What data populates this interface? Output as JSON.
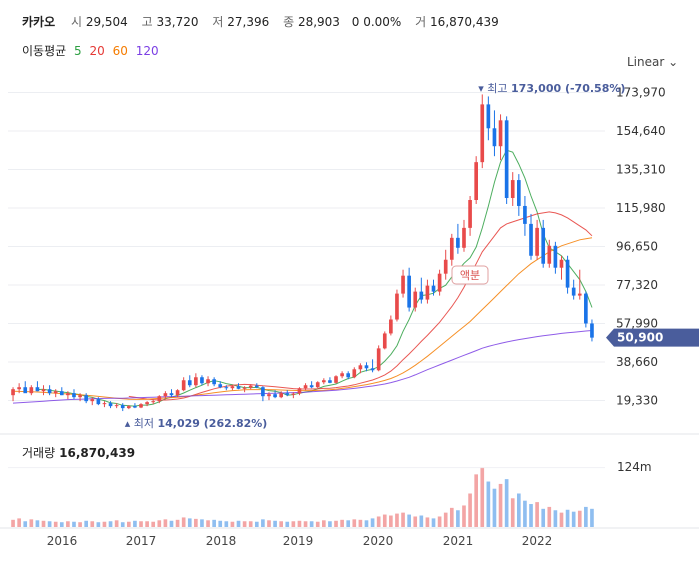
{
  "header": {
    "name": "카카오",
    "open_label": "시",
    "open": "29,504",
    "high_label": "고",
    "high": "33,720",
    "low_label": "저",
    "low": "27,396",
    "close_label": "종",
    "close": "28,903",
    "change": "0 0.00%",
    "volume_label": "거",
    "volume": "16,870,439"
  },
  "ma_legend": {
    "title": "이동평균",
    "items": [
      {
        "label": "5",
        "color": "#2ea043"
      },
      {
        "label": "20",
        "color": "#e53935"
      },
      {
        "label": "60",
        "color": "#f57c00"
      },
      {
        "label": "120",
        "color": "#7b3fe4"
      }
    ]
  },
  "scale_button": "Linear",
  "colors": {
    "up": "#e84a4a",
    "down": "#1a73e8",
    "up_vol": "#f3a5a5",
    "down_vol": "#8fbef0",
    "current": "#4a5d9c"
  },
  "chart_data": {
    "type": "candlestick",
    "x_axis_labels": [
      "2016",
      "2017",
      "2018",
      "2019",
      "2020",
      "2021",
      "2022"
    ],
    "y_axis_labels": [
      "173,970",
      "154,640",
      "135,310",
      "115,980",
      "96,650",
      "77,320",
      "57,990",
      "38,660",
      "19,330"
    ],
    "ylim": [
      10000,
      180000
    ],
    "current_price": "50,900",
    "current_value": 50900,
    "max_annotation": {
      "label": "최고",
      "value": "173,000 (-70.58%)",
      "price": 173000
    },
    "min_annotation": {
      "label": "최저",
      "value": "14,029 (262.82%)",
      "price": 14029
    },
    "event_label": "액분",
    "volume_label": "거래량",
    "volume_value": "16,870,439",
    "volume_tick": "124m",
    "candles": [
      [
        22000,
        26000,
        19000,
        25000
      ],
      [
        25000,
        28000,
        23000,
        26000
      ],
      [
        26000,
        29000,
        24000,
        23000
      ],
      [
        23000,
        27000,
        22000,
        26000
      ],
      [
        26000,
        29000,
        24000,
        24000
      ],
      [
        24000,
        27000,
        22000,
        25000
      ],
      [
        25000,
        27000,
        22000,
        23000
      ],
      [
        23000,
        25000,
        21000,
        24000
      ],
      [
        24000,
        26000,
        22000,
        22000
      ],
      [
        22000,
        24000,
        20000,
        23000
      ],
      [
        23000,
        25000,
        20000,
        21000
      ],
      [
        21000,
        23000,
        19000,
        22000
      ],
      [
        22000,
        23000,
        18000,
        19000
      ],
      [
        19000,
        21000,
        17000,
        20000
      ],
      [
        20000,
        21000,
        17000,
        17500
      ],
      [
        17500,
        19000,
        16000,
        18000
      ],
      [
        18000,
        19000,
        15500,
        16500
      ],
      [
        16500,
        18000,
        15500,
        17000
      ],
      [
        17000,
        18000,
        14029,
        15500
      ],
      [
        15500,
        17000,
        15000,
        16500
      ],
      [
        16500,
        18000,
        15500,
        15800
      ],
      [
        15800,
        18000,
        15500,
        17500
      ],
      [
        17500,
        19000,
        16500,
        18500
      ],
      [
        18500,
        20000,
        17500,
        19000
      ],
      [
        19000,
        22000,
        18000,
        21500
      ],
      [
        21500,
        24000,
        20000,
        23000
      ],
      [
        23000,
        25000,
        21000,
        22000
      ],
      [
        22000,
        25000,
        21000,
        24500
      ],
      [
        24500,
        31000,
        24000,
        29500
      ],
      [
        29500,
        32000,
        26000,
        27000
      ],
      [
        27000,
        33000,
        26000,
        31000
      ],
      [
        31000,
        32000,
        27000,
        28000
      ],
      [
        28000,
        31500,
        26500,
        30000
      ],
      [
        30000,
        31000,
        26500,
        27500
      ],
      [
        27500,
        29000,
        25500,
        26000
      ],
      [
        26000,
        27000,
        24500,
        25500
      ],
      [
        25500,
        27000,
        24500,
        26500
      ],
      [
        26500,
        28000,
        25000,
        25200
      ],
      [
        25200,
        26500,
        23500,
        25800
      ],
      [
        25800,
        27500,
        25000,
        26800
      ],
      [
        26800,
        28000,
        25500,
        26000
      ],
      [
        26000,
        26500,
        19000,
        21500
      ],
      [
        21500,
        23500,
        19500,
        22500
      ],
      [
        22500,
        24500,
        20500,
        21000
      ],
      [
        21000,
        24000,
        20500,
        23000
      ],
      [
        23000,
        24500,
        21500,
        22200
      ],
      [
        22200,
        23500,
        20500,
        22800
      ],
      [
        22800,
        26000,
        22000,
        25500
      ],
      [
        25500,
        28000,
        24500,
        27000
      ],
      [
        27000,
        29000,
        25500,
        26000
      ],
      [
        26000,
        29000,
        25500,
        28500
      ],
      [
        28500,
        30500,
        27500,
        29500
      ],
      [
        29500,
        31000,
        28000,
        28200
      ],
      [
        28200,
        32000,
        27800,
        31500
      ],
      [
        31500,
        34000,
        30500,
        33000
      ],
      [
        33000,
        34000,
        30000,
        31000
      ],
      [
        31000,
        36000,
        30500,
        35000
      ],
      [
        35000,
        38000,
        33000,
        37000
      ],
      [
        37000,
        38500,
        34000,
        35500
      ],
      [
        35500,
        40000,
        33500,
        34500
      ],
      [
        34500,
        47000,
        34000,
        45500
      ],
      [
        45500,
        54000,
        45000,
        53000
      ],
      [
        53000,
        62000,
        52000,
        60000
      ],
      [
        60000,
        75000,
        59000,
        73000
      ],
      [
        73000,
        85000,
        71000,
        82000
      ],
      [
        82000,
        86000,
        64000,
        66000
      ],
      [
        66000,
        76000,
        64000,
        74000
      ],
      [
        74000,
        81000,
        68000,
        70000
      ],
      [
        70000,
        80000,
        68000,
        77000
      ],
      [
        77000,
        80000,
        72000,
        74000
      ],
      [
        74000,
        85000,
        72000,
        83000
      ],
      [
        83000,
        95000,
        80000,
        90000
      ],
      [
        90000,
        103000,
        87000,
        101000
      ],
      [
        101000,
        108000,
        93000,
        96000
      ],
      [
        96000,
        110000,
        94000,
        106000
      ],
      [
        106000,
        122000,
        102000,
        120000
      ],
      [
        120000,
        142000,
        118000,
        139000
      ],
      [
        139000,
        173000,
        136000,
        168000
      ],
      [
        168000,
        172000,
        150000,
        156000
      ],
      [
        156000,
        165000,
        142000,
        147000
      ],
      [
        147000,
        163000,
        140000,
        160000
      ],
      [
        160000,
        162000,
        118000,
        121000
      ],
      [
        121000,
        134000,
        117000,
        130000
      ],
      [
        130000,
        133000,
        112000,
        117000
      ],
      [
        117000,
        122000,
        102000,
        108000
      ],
      [
        108000,
        113000,
        90000,
        92000
      ],
      [
        92000,
        110000,
        90000,
        106000
      ],
      [
        106000,
        110000,
        86000,
        88000
      ],
      [
        88000,
        100000,
        86000,
        97000
      ],
      [
        97000,
        99000,
        83000,
        86000
      ],
      [
        86000,
        92000,
        80000,
        90000
      ],
      [
        90000,
        92000,
        73000,
        76000
      ],
      [
        76000,
        80000,
        70000,
        72000
      ],
      [
        72000,
        85000,
        70000,
        73000
      ],
      [
        73000,
        74000,
        56000,
        58000
      ],
      [
        58000,
        60000,
        49000,
        50900
      ]
    ],
    "ma_lines": [
      {
        "name": "5",
        "color": "#2ea043",
        "values": [
          null,
          null,
          null,
          null,
          24800,
          25000,
          24400,
          24100,
          23600,
          23300,
          22700,
          22300,
          21400,
          20900,
          20000,
          19300,
          18200,
          17800,
          16900,
          16700,
          16500,
          17000,
          17000,
          17500,
          18700,
          20200,
          21000,
          21900,
          23100,
          24500,
          25800,
          27000,
          28400,
          29300,
          28700,
          27800,
          27200,
          26400,
          25800,
          25800,
          25900,
          25100,
          24300,
          24000,
          23300,
          22000,
          22300,
          23000,
          23600,
          24100,
          25200,
          26400,
          27000,
          27600,
          29000,
          30400,
          31100,
          33500,
          34400,
          35000,
          36300,
          39100,
          42500,
          46900,
          54000,
          60000,
          67000,
          72000,
          72400,
          73200,
          75600,
          77200,
          81400,
          84600,
          88200,
          91000,
          96400,
          106000,
          117000,
          129000,
          139000,
          145000,
          144000,
          138000,
          131000,
          122000,
          114000,
          103000,
          96000,
          94000,
          92000,
          88000,
          84000,
          80000,
          74000,
          66000
        ]
      },
      {
        "name": "20",
        "color": "#e53935",
        "values": [
          null,
          null,
          null,
          null,
          null,
          null,
          null,
          null,
          null,
          null,
          null,
          null,
          null,
          null,
          null,
          null,
          null,
          null,
          null,
          21400,
          21000,
          20500,
          20100,
          19800,
          19600,
          19600,
          19800,
          20100,
          20600,
          21400,
          22400,
          23400,
          24300,
          25200,
          25900,
          26500,
          27000,
          27200,
          27400,
          27300,
          27000,
          26700,
          26500,
          26200,
          25900,
          25600,
          25300,
          25100,
          25100,
          25100,
          25200,
          25400,
          25500,
          25800,
          26200,
          26600,
          27200,
          28000,
          28800,
          29600,
          30800,
          32200,
          34100,
          36700,
          39800,
          42700,
          45800,
          49000,
          52000,
          55300,
          58600,
          62500,
          66500,
          71000,
          76200,
          82000,
          88000,
          94000,
          98000,
          102000,
          106000,
          108000,
          109000,
          110000,
          111000,
          112000,
          113000,
          113500,
          114000,
          113500,
          112500,
          111000,
          109000,
          107000,
          105000,
          102000
        ]
      },
      {
        "name": "60",
        "color": "#f57c00",
        "values": [
          24000,
          23900,
          23800,
          23700,
          23600,
          23400,
          23200,
          23000,
          22800,
          22600,
          22400,
          22200,
          22000,
          21700,
          21400,
          21100,
          20800,
          20500,
          20200,
          20000,
          19900,
          19900,
          20000,
          20200,
          20400,
          20600,
          20800,
          21000,
          21300,
          21600,
          22000,
          22400,
          22800,
          23200,
          23600,
          24000,
          24300,
          24500,
          24700,
          24800,
          24800,
          24800,
          24800,
          24700,
          24600,
          24500,
          24400,
          24300,
          24300,
          24300,
          24400,
          24500,
          24700,
          25000,
          25400,
          25800,
          26300,
          26800,
          27300,
          27900,
          28600,
          29400,
          30400,
          31700,
          33200,
          35000,
          37000,
          39200,
          41500,
          44000,
          46500,
          49000,
          51500,
          54000,
          56500,
          59000,
          62000,
          65000,
          68000,
          71000,
          74000,
          77000,
          80000,
          83000,
          85500,
          88000,
          90000,
          92000,
          94000,
          95500,
          97000,
          98000,
          99000,
          100000,
          100500,
          101000
        ]
      },
      {
        "name": "120",
        "color": "#7b3fe4",
        "values": [
          18000,
          18200,
          18400,
          18600,
          18800,
          19000,
          19200,
          19400,
          19600,
          19800,
          19900,
          20000,
          20100,
          20200,
          20300,
          20400,
          20500,
          20500,
          20500,
          20600,
          20700,
          20800,
          20900,
          21000,
          21100,
          21200,
          21300,
          21400,
          21500,
          21600,
          21700,
          21800,
          21900,
          22000,
          22100,
          22200,
          22300,
          22400,
          22500,
          22600,
          22700,
          22800,
          22900,
          23000,
          23100,
          23200,
          23300,
          23400,
          23500,
          23700,
          23900,
          24100,
          24300,
          24500,
          24800,
          25100,
          25400,
          25800,
          26200,
          26600,
          27100,
          27600,
          28300,
          29100,
          30000,
          31000,
          32200,
          33500,
          34800,
          36000,
          37200,
          38400,
          39600,
          40800,
          42000,
          43200,
          44400,
          45600,
          46500,
          47300,
          48000,
          48700,
          49300,
          49900,
          50400,
          50900,
          51400,
          51800,
          52200,
          52600,
          53000,
          53300,
          53600,
          53900,
          54200,
          54500
        ]
      }
    ],
    "volume_ylim": [
      0,
      140
    ],
    "volumes": [
      15,
      18,
      12,
      16,
      14,
      13,
      12,
      11,
      10,
      12,
      11,
      10,
      13,
      12,
      10,
      11,
      12,
      14,
      10,
      11,
      13,
      12,
      12,
      11,
      14,
      16,
      13,
      15,
      20,
      18,
      17,
      16,
      14,
      15,
      13,
      12,
      11,
      13,
      12,
      12,
      11,
      16,
      14,
      13,
      12,
      11,
      12,
      13,
      12,
      12,
      11,
      14,
      12,
      13,
      15,
      14,
      16,
      15,
      14,
      18,
      22,
      26,
      24,
      28,
      30,
      26,
      22,
      24,
      20,
      18,
      22,
      30,
      40,
      35,
      45,
      70,
      110,
      125,
      95,
      80,
      90,
      100,
      60,
      70,
      55,
      48,
      52,
      38,
      42,
      35,
      30,
      36,
      32,
      34,
      42,
      38
    ]
  }
}
